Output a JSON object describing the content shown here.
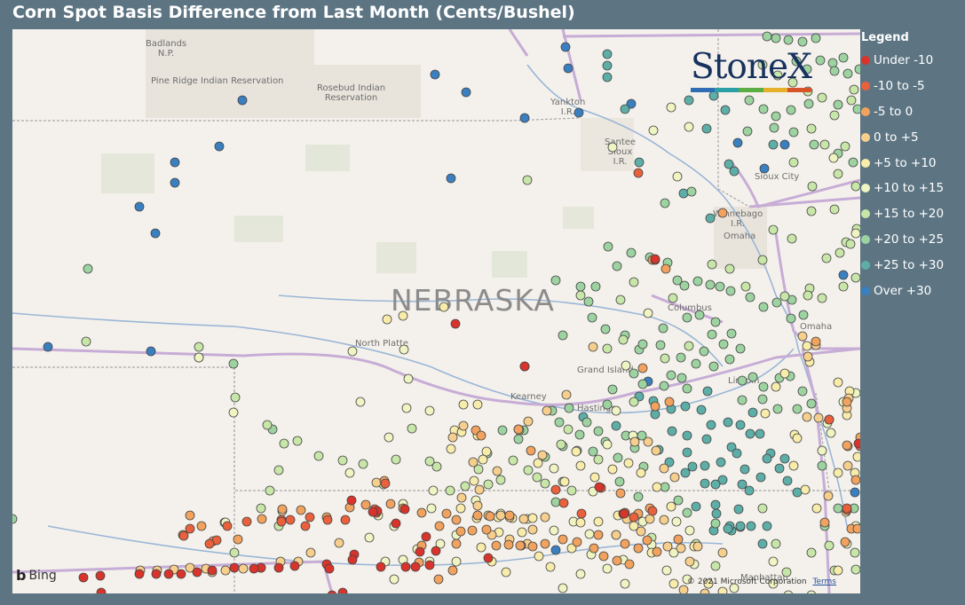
{
  "title": "Corn Spot Basis Difference from Last Month (Cents/Bushel)",
  "map": {
    "state_label": "NEBRASKA",
    "place_labels": [
      {
        "id": "badlands",
        "text": "Badlands\nN.P."
      },
      {
        "id": "pine-ridge",
        "text": "Pine Ridge Indian Reservation"
      },
      {
        "id": "rosebud",
        "text": "Rosebud Indian\nReservation"
      },
      {
        "id": "yankton",
        "text": "Yankton\nI.R."
      },
      {
        "id": "santee",
        "text": "Santee\nSioux\nI.R."
      },
      {
        "id": "sioux-city",
        "text": "Sioux City"
      },
      {
        "id": "winnebago",
        "text": "Winnebago\nI.R."
      },
      {
        "id": "omaha-ir",
        "text": "Omaha"
      },
      {
        "id": "columbus",
        "text": "Columbus"
      },
      {
        "id": "omaha",
        "text": "Omaha"
      },
      {
        "id": "north-platte",
        "text": "North Platte"
      },
      {
        "id": "grand-island",
        "text": "Grand Island"
      },
      {
        "id": "kearney",
        "text": "Kearney"
      },
      {
        "id": "hastings",
        "text": "Hastings"
      },
      {
        "id": "lincoln",
        "text": "Lincoln"
      },
      {
        "id": "manhattan",
        "text": "Manhattan"
      }
    ],
    "attribution": {
      "provider": "Bing",
      "copyright": "© 2021 Microsoft Corporation",
      "terms": "Terms"
    }
  },
  "logo": {
    "text": "StoneX",
    "bar_colors": [
      "#2f6db5",
      "#2aa0a6",
      "#5aae43",
      "#e6b12a",
      "#d7542a"
    ]
  },
  "legend": {
    "title": "Legend",
    "items": [
      {
        "label": "Under -10",
        "color": "#d9342b"
      },
      {
        "label": "-10 to -5",
        "color": "#e8603c"
      },
      {
        "label": "-5 to 0",
        "color": "#f0a25e"
      },
      {
        "label": "0 to +5",
        "color": "#f7cf8d"
      },
      {
        "label": "+5 to +10",
        "color": "#f8ecaa"
      },
      {
        "label": "+10 to +15",
        "color": "#eef4c2"
      },
      {
        "label": "+15 to +20",
        "color": "#c9e6a9"
      },
      {
        "label": "+20 to +25",
        "color": "#9dd3a0"
      },
      {
        "label": "+25 to +30",
        "color": "#5eaea8"
      },
      {
        "label": "Over +30",
        "color": "#3a7fc0"
      }
    ]
  }
}
